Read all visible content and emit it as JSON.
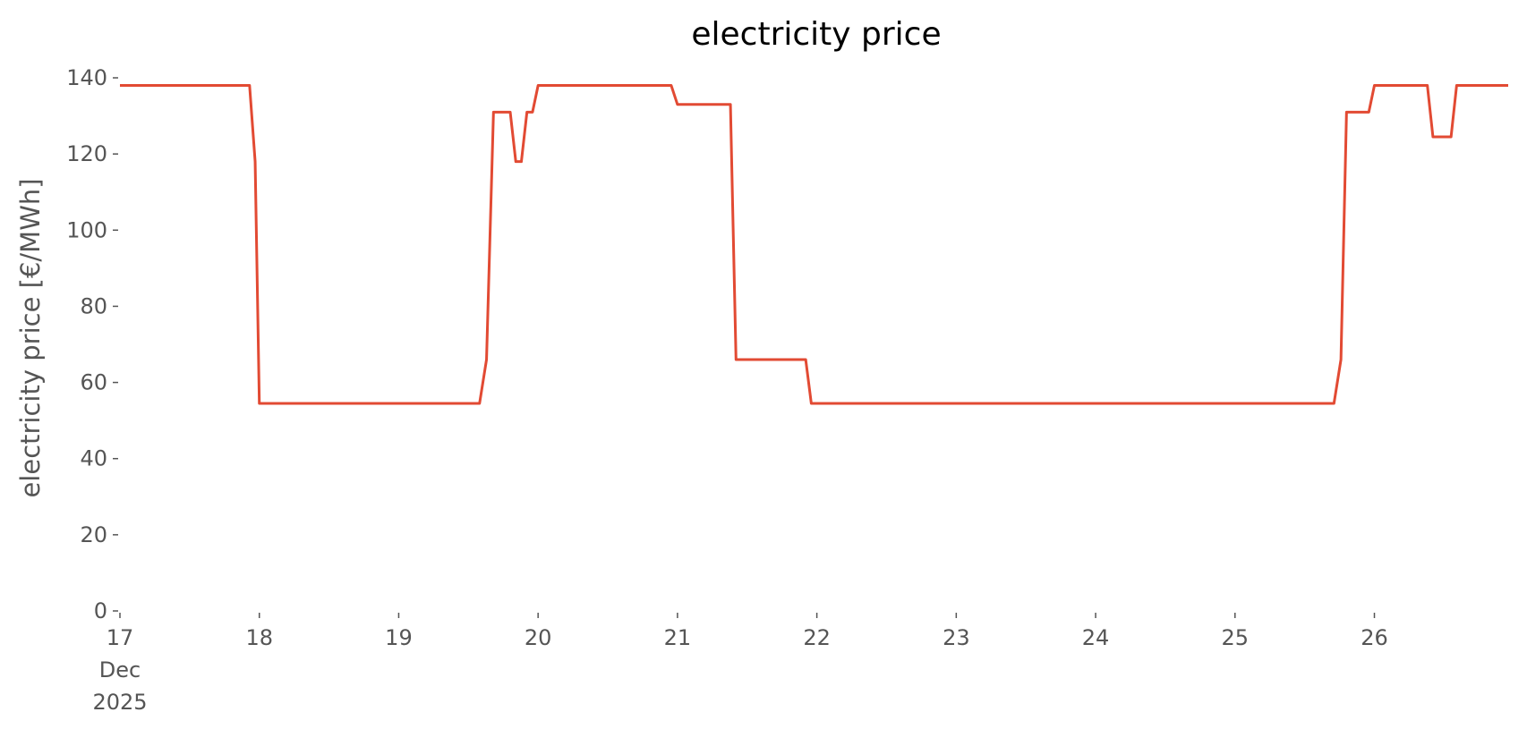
{
  "chart_data": {
    "type": "line",
    "title": "electricity price",
    "y_label": "electricity price [€/MWh]",
    "x": [
      17,
      17.93,
      17.97,
      18.0,
      19.58,
      19.63,
      19.68,
      19.8,
      19.84,
      19.88,
      19.92,
      19.96,
      20.0,
      20.955,
      21.0,
      21.38,
      21.42,
      21.92,
      21.96,
      25.71,
      25.76,
      25.8,
      25.96,
      26.0,
      26.38,
      26.42,
      26.55,
      26.59,
      26.96
    ],
    "series": [
      {
        "name": "electricity price",
        "color": "#e24a33",
        "values": [
          138,
          138,
          118,
          54.5,
          54.5,
          66,
          131,
          131,
          118,
          118,
          131,
          131,
          138,
          138,
          133,
          133,
          66,
          66,
          54.5,
          54.5,
          66,
          131,
          131,
          138,
          138,
          124.5,
          124.5,
          138,
          138
        ]
      }
    ],
    "xlim": [
      17,
      26.96
    ],
    "xticks": [
      {
        "value": 17,
        "label": "17\nDec\n2025"
      },
      18,
      19,
      20,
      21,
      22,
      23,
      24,
      25,
      26
    ],
    "ylim": [
      0,
      140
    ],
    "yticks": [
      0,
      20,
      40,
      60,
      80,
      100,
      120,
      140
    ],
    "grid": false
  }
}
